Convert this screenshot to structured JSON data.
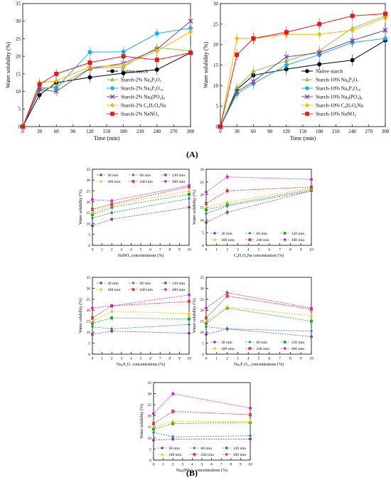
{
  "figure": {
    "panel_A_label": "(A)",
    "panel_B_label": "(B)"
  },
  "chart_data": [
    {
      "id": "A1",
      "type": "line",
      "xlabel": "Time (min)",
      "ylabel": "Water solubility (%)",
      "x": [
        0,
        30,
        60,
        120,
        180,
        240,
        300
      ],
      "xlim": [
        0,
        300
      ],
      "ylim": [
        0,
        35
      ],
      "xticks": [
        0,
        30,
        60,
        90,
        120,
        150,
        180,
        210,
        240,
        270,
        300
      ],
      "yticks": [
        0,
        5,
        10,
        15,
        20,
        25,
        30,
        35
      ],
      "legend_position": "bottom-right",
      "series": [
        {
          "name": "Native starch",
          "color": "#000000",
          "marker": "circle",
          "values": [
            0,
            9,
            12.5,
            14,
            15.2,
            16.2,
            21
          ]
        },
        {
          "name": "Starch-2% Na₄P₂O₇",
          "color": "#8dc63f",
          "marker": "triangle",
          "values": [
            0,
            10.5,
            11.5,
            16.5,
            17,
            22.5,
            21.5
          ]
        },
        {
          "name": "Starch-2% Na₅P₃O₁₀",
          "color": "#1ab0e8",
          "marker": "circle",
          "values": [
            0,
            11,
            11,
            21.2,
            21.3,
            26.5,
            28
          ]
        },
        {
          "name": "Starch-2% Na₆(PO₃)₆",
          "color": "#7b3fa0",
          "marker": "x",
          "values": [
            0,
            10.5,
            10,
            16.5,
            18,
            22,
            30
          ]
        },
        {
          "name": "Starch-2% C₆H₇O₆Na",
          "color": "#f5b800",
          "marker": "diamond",
          "values": [
            0,
            12.5,
            13,
            17,
            17.5,
            21.5,
            27
          ]
        },
        {
          "name": "Starch-2% NaNO₂",
          "color": "#e31a1c",
          "marker": "square",
          "values": [
            0,
            12,
            15,
            18.2,
            20,
            19,
            21
          ]
        }
      ]
    },
    {
      "id": "A2",
      "type": "line",
      "xlabel": "Time (min)",
      "ylabel": "Water solubility (%)",
      "x": [
        0,
        30,
        60,
        120,
        180,
        240,
        300
      ],
      "xlim": [
        0,
        300
      ],
      "ylim": [
        0,
        30
      ],
      "xticks": [
        0,
        30,
        60,
        90,
        120,
        150,
        180,
        210,
        240,
        270,
        300
      ],
      "yticks": [
        0,
        5,
        10,
        15,
        20,
        25,
        30
      ],
      "legend_position": "bottom-right",
      "series": [
        {
          "name": "Native starch",
          "color": "#000000",
          "marker": "circle",
          "values": [
            0,
            9,
            12.5,
            14,
            15.2,
            16.2,
            21
          ]
        },
        {
          "name": "Starch-10% Na₄P₂O₇",
          "color": "#8dc63f",
          "marker": "triangle",
          "values": [
            0,
            9.5,
            13.5,
            16,
            18.5,
            24,
            27
          ]
        },
        {
          "name": "Starch-10% Na₅P₃O₁₀",
          "color": "#1ab0e8",
          "marker": "circle",
          "values": [
            0,
            8,
            10.5,
            15,
            17.5,
            20.5,
            21.5
          ]
        },
        {
          "name": "Starch-10% Na₆(PO₃)₆",
          "color": "#7b3fa0",
          "marker": "x",
          "values": [
            0,
            8.5,
            11,
            17,
            18,
            21,
            23.5
          ]
        },
        {
          "name": "Starch-10% C₆H₇O₆Na",
          "color": "#f5b800",
          "marker": "diamond",
          "values": [
            0,
            21.5,
            21.5,
            22.5,
            22.5,
            23.5,
            26.5
          ]
        },
        {
          "name": "Starch-10% NaNO₂",
          "color": "#e31a1c",
          "marker": "square",
          "values": [
            0,
            17.5,
            21.5,
            23,
            25,
            27,
            27.5
          ]
        }
      ]
    },
    {
      "id": "B1",
      "type": "line",
      "xlabel": "NaNO₂ concentrations (%)",
      "ylabel": "Water solubility (%)",
      "x": [
        0,
        2,
        10
      ],
      "xlim": [
        0,
        10
      ],
      "ylim": [
        0,
        35
      ],
      "xticks": [
        0,
        1,
        2,
        3,
        4,
        5,
        6,
        7,
        8,
        9,
        10
      ],
      "yticks": [
        0,
        5,
        10,
        15,
        20,
        25,
        30,
        35
      ],
      "legend_position": "top",
      "series": [
        {
          "name": "30 min",
          "color": "#7b3fa0",
          "marker": "circle",
          "values": [
            9,
            12,
            17.5
          ]
        },
        {
          "name": "60 min",
          "color": "#1f77b4",
          "marker": "diamond",
          "values": [
            12.5,
            15,
            21.5
          ]
        },
        {
          "name": "120 min",
          "color": "#2ca02c",
          "marker": "square",
          "values": [
            14,
            17.5,
            23.5
          ]
        },
        {
          "name": "180 min",
          "color": "#f5b800",
          "marker": "triangle",
          "values": [
            15,
            18.5,
            25
          ]
        },
        {
          "name": "240 min",
          "color": "#e31a1c",
          "marker": "x",
          "values": [
            16.5,
            19,
            27
          ]
        },
        {
          "name": "300 min",
          "color": "#d020d0",
          "marker": "circle",
          "values": [
            21,
            20.5,
            27.5
          ]
        }
      ]
    },
    {
      "id": "B2",
      "type": "line",
      "xlabel": "C₆H₇O₆Na concentration (%)",
      "ylabel": "Water solubility (%)",
      "x": [
        0,
        2,
        10
      ],
      "xlim": [
        0,
        10
      ],
      "ylim": [
        0,
        30
      ],
      "xticks": [
        0,
        1,
        2,
        3,
        4,
        5,
        6,
        7,
        8,
        9,
        10
      ],
      "yticks": [
        0,
        5,
        10,
        15,
        20,
        25,
        30
      ],
      "legend_position": "bottom",
      "series": [
        {
          "name": "30 min",
          "color": "#7b3fa0",
          "marker": "circle",
          "values": [
            9,
            13,
            21.5
          ]
        },
        {
          "name": "60 min",
          "color": "#1f77b4",
          "marker": "diamond",
          "values": [
            12.5,
            15.5,
            21.5
          ]
        },
        {
          "name": "120 min",
          "color": "#2ca02c",
          "marker": "square",
          "values": [
            14,
            16,
            22
          ]
        },
        {
          "name": "180 min",
          "color": "#f5b800",
          "marker": "triangle",
          "values": [
            15,
            17,
            22.5
          ]
        },
        {
          "name": "240 min",
          "color": "#e31a1c",
          "marker": "x",
          "values": [
            16.5,
            21.5,
            23
          ]
        },
        {
          "name": "300 min",
          "color": "#d020d0",
          "marker": "circle",
          "values": [
            21,
            27,
            26
          ]
        }
      ]
    },
    {
      "id": "B3",
      "type": "line",
      "xlabel": "Na₄P₂O₇ concentrations (%)",
      "ylabel": "Water solubility (%)",
      "x": [
        0,
        2,
        10
      ],
      "xlim": [
        0,
        10
      ],
      "ylim": [
        0,
        35
      ],
      "xticks": [
        0,
        1,
        2,
        3,
        4,
        5,
        6,
        7,
        8,
        9,
        10
      ],
      "yticks": [
        0,
        5,
        10,
        15,
        20,
        25,
        30,
        35
      ],
      "legend_position": "top",
      "series": [
        {
          "name": "30 min",
          "color": "#7b3fa0",
          "marker": "circle",
          "values": [
            9,
            10.5,
            9.5
          ]
        },
        {
          "name": "60 min",
          "color": "#1f77b4",
          "marker": "diamond",
          "values": [
            12.5,
            11.5,
            13.5
          ]
        },
        {
          "name": "120 min",
          "color": "#2ca02c",
          "marker": "square",
          "values": [
            14,
            16.5,
            16
          ]
        },
        {
          "name": "180 min",
          "color": "#f5b800",
          "marker": "triangle",
          "values": [
            15,
            19.5,
            18.5
          ]
        },
        {
          "name": "240 min",
          "color": "#e31a1c",
          "marker": "x",
          "values": [
            16.5,
            22,
            24
          ]
        },
        {
          "name": "300 min",
          "color": "#d020d0",
          "marker": "circle",
          "values": [
            21,
            22,
            27
          ]
        }
      ]
    },
    {
      "id": "B4",
      "type": "line",
      "xlabel": "Na₅P₃O₁₀ concentrations (%)",
      "ylabel": "Water solubility (%)",
      "x": [
        0,
        2,
        10
      ],
      "xlim": [
        0,
        10
      ],
      "ylim": [
        0,
        35
      ],
      "xticks": [
        0,
        1,
        2,
        3,
        4,
        5,
        6,
        7,
        8,
        9,
        10
      ],
      "yticks": [
        0,
        5,
        10,
        15,
        20,
        25,
        30,
        35
      ],
      "legend_position": "bottom",
      "series": [
        {
          "name": "30 min",
          "color": "#7b3fa0",
          "marker": "circle",
          "values": [
            9,
            11.5,
            8
          ]
        },
        {
          "name": "60 min",
          "color": "#1f77b4",
          "marker": "diamond",
          "values": [
            12.5,
            11.5,
            10.5
          ]
        },
        {
          "name": "120 min",
          "color": "#2ca02c",
          "marker": "square",
          "values": [
            14,
            21,
            15
          ]
        },
        {
          "name": "180 min",
          "color": "#f5b800",
          "marker": "triangle",
          "values": [
            15,
            21.5,
            17.5
          ]
        },
        {
          "name": "240 min",
          "color": "#e31a1c",
          "marker": "x",
          "values": [
            16.5,
            26.5,
            20.5
          ]
        },
        {
          "name": "300 min",
          "color": "#d020d0",
          "marker": "circle",
          "values": [
            21,
            28,
            21
          ]
        }
      ]
    },
    {
      "id": "B5",
      "type": "line",
      "xlabel": "Na₆(PO₃)₆ concentrations (%)",
      "ylabel": "Water solubility (%)",
      "x": [
        0,
        2,
        10
      ],
      "xlim": [
        0,
        10
      ],
      "ylim": [
        0,
        35
      ],
      "xticks": [
        0,
        1,
        2,
        3,
        4,
        5,
        6,
        7,
        8,
        9,
        10
      ],
      "yticks": [
        0,
        5,
        10,
        15,
        20,
        25,
        30,
        35
      ],
      "legend_position": "bottom",
      "series": [
        {
          "name": "30 min",
          "color": "#7b3fa0",
          "marker": "circle",
          "values": [
            9,
            9.5,
            9.5
          ]
        },
        {
          "name": "60 min",
          "color": "#1f77b4",
          "marker": "diamond",
          "values": [
            12.5,
            10.5,
            11
          ]
        },
        {
          "name": "120 min",
          "color": "#2ca02c",
          "marker": "square",
          "values": [
            14,
            16.5,
            17
          ]
        },
        {
          "name": "180 min",
          "color": "#f5b800",
          "marker": "triangle",
          "values": [
            15,
            17.5,
            17.5
          ]
        },
        {
          "name": "240 min",
          "color": "#e31a1c",
          "marker": "x",
          "values": [
            16.5,
            22,
            20.5
          ]
        },
        {
          "name": "300 min",
          "color": "#d020d0",
          "marker": "circle",
          "values": [
            21,
            30,
            23.5
          ]
        }
      ]
    }
  ]
}
